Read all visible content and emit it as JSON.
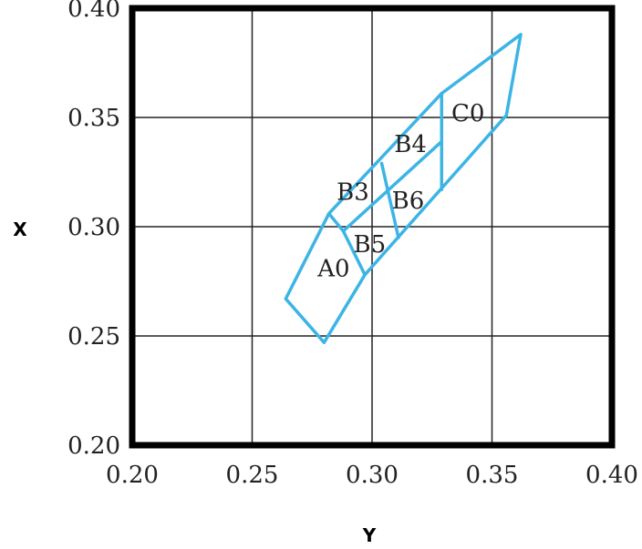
{
  "chart_data": {
    "type": "diagram",
    "xlabel": "Y",
    "ylabel": "X",
    "xlim": [
      0.2,
      0.4
    ],
    "ylim": [
      0.2,
      0.4
    ],
    "xticks": [
      "0.20",
      "0.25",
      "0.30",
      "0.35",
      "0.40"
    ],
    "yticks": [
      "0.20",
      "0.25",
      "0.30",
      "0.35",
      "0.40"
    ],
    "grid": true,
    "colors": {
      "boundary": "#3cb4e6",
      "frame": "#000000",
      "grid": "#222222"
    },
    "outline": [
      [
        0.28,
        0.247
      ],
      [
        0.264,
        0.267
      ],
      [
        0.282,
        0.306
      ],
      [
        0.329,
        0.361
      ],
      [
        0.362,
        0.388
      ],
      [
        0.356,
        0.351
      ],
      [
        0.297,
        0.278
      ]
    ],
    "segments": [
      {
        "from": [
          0.282,
          0.306
        ],
        "to": [
          0.288,
          0.298
        ]
      },
      {
        "from": [
          0.288,
          0.298
        ],
        "to": [
          0.297,
          0.278
        ]
      },
      {
        "from": [
          0.288,
          0.298
        ],
        "to": [
          0.329,
          0.339
        ]
      },
      {
        "from": [
          0.304,
          0.329
        ],
        "to": [
          0.311,
          0.295
        ]
      },
      {
        "from": [
          0.329,
          0.361
        ],
        "to": [
          0.329,
          0.317
        ]
      }
    ],
    "regions": [
      {
        "name": "A0",
        "x": 0.284,
        "y": 0.281
      },
      {
        "name": "B5",
        "x": 0.299,
        "y": 0.292
      },
      {
        "name": "B3",
        "x": 0.292,
        "y": 0.316
      },
      {
        "name": "B6",
        "x": 0.315,
        "y": 0.312
      },
      {
        "name": "B4",
        "x": 0.316,
        "y": 0.338
      },
      {
        "name": "C0",
        "x": 0.34,
        "y": 0.352
      }
    ]
  }
}
